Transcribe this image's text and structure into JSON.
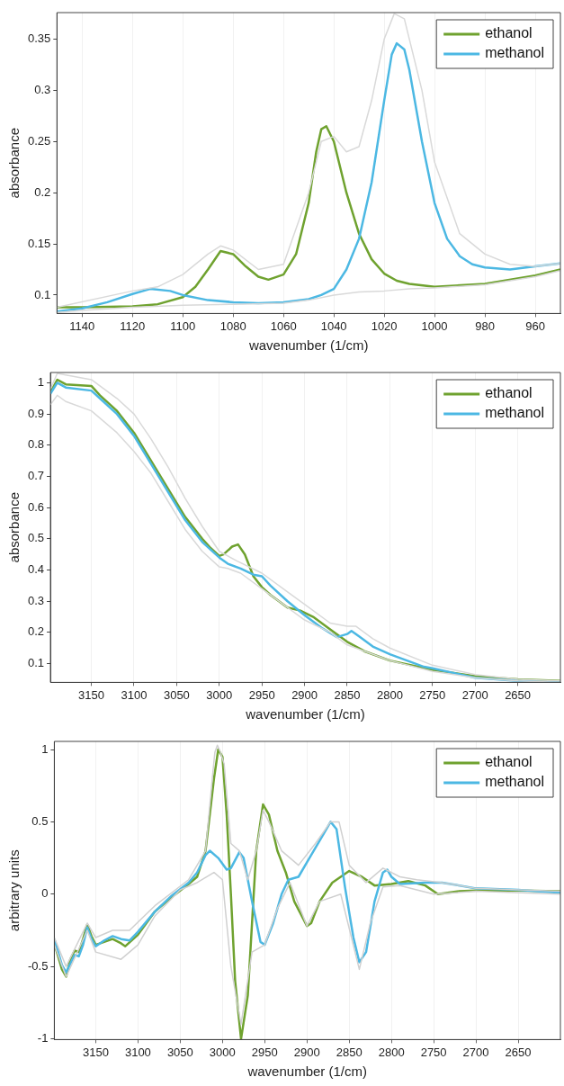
{
  "chart_data": [
    {
      "type": "line",
      "xlabel": "wavenumber (1/cm)",
      "ylabel": "absorbance",
      "xlim": [
        1150,
        950
      ],
      "ylim": [
        0.082,
        0.376
      ],
      "xticks": [
        1140,
        1120,
        1100,
        1080,
        1060,
        1040,
        1020,
        1000,
        980,
        960
      ],
      "yticks": [
        0.1,
        0.15,
        0.2,
        0.25,
        0.3,
        0.35
      ],
      "grid": "x",
      "legend": "top right",
      "series": [
        {
          "color": "#d9d9d9",
          "x": [
            1150,
            1120,
            1110,
            1100,
            1090,
            1085,
            1080,
            1070,
            1060,
            1050,
            1045,
            1040,
            1035,
            1030,
            1025,
            1020,
            1016,
            1012,
            1005,
            1000,
            990,
            980,
            970,
            960,
            950
          ],
          "values": [
            0.088,
            0.104,
            0.108,
            0.12,
            0.14,
            0.148,
            0.144,
            0.125,
            0.13,
            0.2,
            0.25,
            0.255,
            0.24,
            0.245,
            0.29,
            0.35,
            0.375,
            0.37,
            0.3,
            0.23,
            0.16,
            0.14,
            0.13,
            0.128,
            0.131
          ]
        },
        {
          "color": "#d9d9d9",
          "x": [
            1150,
            1140,
            1120,
            1100,
            1080,
            1060,
            1050,
            1040,
            1030,
            1020,
            1010,
            1000,
            980,
            960,
            950
          ],
          "values": [
            0.083,
            0.085,
            0.088,
            0.09,
            0.091,
            0.092,
            0.095,
            0.1,
            0.103,
            0.104,
            0.106,
            0.107,
            0.11,
            0.118,
            0.124
          ]
        },
        {
          "name": "ethanol",
          "color": "#6fa22f",
          "x": [
            1150,
            1140,
            1120,
            1110,
            1100,
            1095,
            1090,
            1085,
            1080,
            1075,
            1070,
            1066,
            1060,
            1055,
            1050,
            1047,
            1045,
            1043,
            1040,
            1035,
            1030,
            1025,
            1020,
            1015,
            1010,
            1000,
            980,
            960,
            950
          ],
          "values": [
            0.088,
            0.088,
            0.089,
            0.091,
            0.098,
            0.108,
            0.125,
            0.143,
            0.14,
            0.128,
            0.118,
            0.115,
            0.12,
            0.14,
            0.19,
            0.24,
            0.262,
            0.265,
            0.25,
            0.2,
            0.16,
            0.135,
            0.121,
            0.114,
            0.111,
            0.108,
            0.111,
            0.119,
            0.125
          ]
        },
        {
          "name": "methanol",
          "color": "#4cb8e3",
          "x": [
            1150,
            1140,
            1130,
            1120,
            1113,
            1105,
            1100,
            1090,
            1080,
            1070,
            1060,
            1050,
            1045,
            1040,
            1035,
            1030,
            1025,
            1020,
            1017,
            1015,
            1012,
            1010,
            1005,
            1000,
            995,
            990,
            985,
            980,
            970,
            960,
            950
          ],
          "values": [
            0.084,
            0.087,
            0.093,
            0.101,
            0.106,
            0.104,
            0.1,
            0.095,
            0.093,
            0.092,
            0.093,
            0.096,
            0.1,
            0.106,
            0.125,
            0.155,
            0.21,
            0.29,
            0.335,
            0.346,
            0.34,
            0.32,
            0.25,
            0.19,
            0.155,
            0.138,
            0.13,
            0.127,
            0.125,
            0.128,
            0.131
          ]
        }
      ]
    },
    {
      "type": "line",
      "xlabel": "wavenumber (1/cm)",
      "ylabel": "absorbance",
      "xlim": [
        3198,
        2600
      ],
      "ylim": [
        0.04,
        1.033
      ],
      "xticks": [
        3150,
        3100,
        3050,
        3000,
        2950,
        2900,
        2850,
        2800,
        2750,
        2700,
        2650
      ],
      "yticks": [
        0.1,
        0.2,
        0.3,
        0.4,
        0.5,
        0.6,
        0.7,
        0.8,
        0.9,
        1
      ],
      "grid": "x",
      "legend": "top right",
      "series": [
        {
          "color": "#d9d9d9",
          "x": [
            3198,
            3190,
            3170,
            3150,
            3120,
            3100,
            3080,
            3060,
            3040,
            3020,
            3000,
            2980,
            2950,
            2920,
            2900,
            2870,
            2850,
            2840,
            2820,
            2800,
            2750,
            2700,
            2650,
            2600
          ],
          "values": [
            0.98,
            1.03,
            1.02,
            1.01,
            0.95,
            0.9,
            0.82,
            0.73,
            0.63,
            0.54,
            0.46,
            0.43,
            0.39,
            0.33,
            0.29,
            0.23,
            0.22,
            0.22,
            0.18,
            0.15,
            0.095,
            0.065,
            0.05,
            0.045
          ]
        },
        {
          "color": "#d9d9d9",
          "x": [
            3198,
            3190,
            3180,
            3150,
            3120,
            3100,
            3080,
            3060,
            3040,
            3020,
            3000,
            2990,
            2975,
            2950,
            2920,
            2900,
            2870,
            2850,
            2800,
            2750,
            2700,
            2650,
            2600
          ],
          "values": [
            0.93,
            0.96,
            0.94,
            0.91,
            0.84,
            0.78,
            0.71,
            0.62,
            0.53,
            0.46,
            0.41,
            0.405,
            0.39,
            0.34,
            0.28,
            0.24,
            0.2,
            0.16,
            0.11,
            0.075,
            0.055,
            0.045,
            0.04
          ]
        },
        {
          "name": "ethanol",
          "color": "#6fa22f",
          "x": [
            3198,
            3190,
            3180,
            3150,
            3140,
            3120,
            3100,
            3080,
            3060,
            3040,
            3020,
            3010,
            3000,
            2995,
            2985,
            2978,
            2970,
            2960,
            2950,
            2940,
            2920,
            2905,
            2890,
            2870,
            2850,
            2830,
            2800,
            2750,
            2700,
            2650,
            2600
          ],
          "values": [
            0.97,
            1.01,
            0.995,
            0.99,
            0.96,
            0.91,
            0.84,
            0.75,
            0.66,
            0.57,
            0.5,
            0.47,
            0.445,
            0.45,
            0.475,
            0.482,
            0.45,
            0.38,
            0.345,
            0.32,
            0.28,
            0.27,
            0.25,
            0.21,
            0.17,
            0.14,
            0.11,
            0.08,
            0.06,
            0.05,
            0.045
          ]
        },
        {
          "name": "methanol",
          "color": "#4cb8e3",
          "x": [
            3198,
            3190,
            3180,
            3150,
            3140,
            3120,
            3100,
            3080,
            3060,
            3040,
            3020,
            3000,
            2990,
            2975,
            2960,
            2950,
            2940,
            2920,
            2900,
            2880,
            2862,
            2850,
            2845,
            2835,
            2820,
            2800,
            2760,
            2750,
            2700,
            2650,
            2600
          ],
          "values": [
            0.965,
            1.0,
            0.985,
            0.975,
            0.95,
            0.9,
            0.83,
            0.74,
            0.65,
            0.56,
            0.49,
            0.44,
            0.42,
            0.405,
            0.385,
            0.38,
            0.35,
            0.3,
            0.255,
            0.215,
            0.185,
            0.195,
            0.205,
            0.185,
            0.155,
            0.13,
            0.09,
            0.085,
            0.055,
            0.045,
            0.04
          ]
        }
      ]
    },
    {
      "type": "line",
      "xlabel": "wavenumber (1/cm)",
      "ylabel": "arbitrary units",
      "xlim": [
        3199,
        2600
      ],
      "ylim": [
        -1.005,
        1.056
      ],
      "xticks": [
        3150,
        3100,
        3050,
        3000,
        2950,
        2900,
        2850,
        2800,
        2750,
        2700,
        2650
      ],
      "yticks": [
        -1,
        -0.5,
        0,
        0.5,
        1
      ],
      "grid": "x",
      "legend": "top right",
      "series": [
        {
          "color": "#d0d0d0",
          "x": [
            3199,
            3185,
            3160,
            3150,
            3130,
            3110,
            3080,
            3040,
            3020,
            3012,
            3009,
            3006,
            3003,
            2998,
            2990,
            2980,
            2970,
            2960,
            2952,
            2945,
            2930,
            2910,
            2890,
            2872,
            2862,
            2850,
            2830,
            2810,
            2790,
            2770,
            2740,
            2700,
            2650,
            2600
          ],
          "values": [
            -0.3,
            -0.5,
            -0.2,
            -0.3,
            -0.25,
            -0.25,
            -0.08,
            0.1,
            0.3,
            0.8,
            0.98,
            1.03,
            0.99,
            0.9,
            0.35,
            0.3,
            0.1,
            0.3,
            0.58,
            0.5,
            0.3,
            0.2,
            0.35,
            0.5,
            0.5,
            0.2,
            0.08,
            0.18,
            0.12,
            0.1,
            0.08,
            0.04,
            0.03,
            0.02
          ]
        },
        {
          "color": "#d0d0d0",
          "x": [
            3199,
            3185,
            3160,
            3150,
            3120,
            3100,
            3080,
            3050,
            3030,
            3010,
            3000,
            2990,
            2978,
            2965,
            2950,
            2935,
            2920,
            2900,
            2885,
            2860,
            2838,
            2825,
            2810,
            2790,
            2750,
            2700,
            2600
          ],
          "values": [
            -0.35,
            -0.57,
            -0.25,
            -0.4,
            -0.45,
            -0.35,
            -0.15,
            0.03,
            0.08,
            0.15,
            0.1,
            -0.5,
            -0.9,
            -0.4,
            -0.35,
            -0.1,
            0.08,
            -0.22,
            -0.05,
            0.0,
            -0.52,
            -0.2,
            0.05,
            0.06,
            0.0,
            0.02,
            0.0
          ]
        },
        {
          "name": "ethanol",
          "color": "#6fa22f",
          "x": [
            3199,
            3190,
            3185,
            3180,
            3175,
            3170,
            3165,
            3160,
            3155,
            3150,
            3140,
            3130,
            3120,
            3115,
            3100,
            3080,
            3060,
            3040,
            3030,
            3020,
            3010,
            3005,
            3000,
            2995,
            2990,
            2985,
            2978,
            2970,
            2965,
            2960,
            2952,
            2945,
            2935,
            2925,
            2915,
            2900,
            2895,
            2885,
            2870,
            2850,
            2835,
            2820,
            2800,
            2780,
            2760,
            2745,
            2720,
            2700,
            2650,
            2600
          ],
          "values": [
            -0.34,
            -0.52,
            -0.57,
            -0.45,
            -0.39,
            -0.4,
            -0.31,
            -0.21,
            -0.29,
            -0.35,
            -0.33,
            -0.31,
            -0.34,
            -0.36,
            -0.28,
            -0.12,
            -0.02,
            0.07,
            0.12,
            0.3,
            0.8,
            1.0,
            0.95,
            0.55,
            0.0,
            -0.6,
            -1.0,
            -0.7,
            -0.2,
            0.3,
            0.62,
            0.55,
            0.3,
            0.15,
            -0.05,
            -0.22,
            -0.2,
            -0.05,
            0.08,
            0.16,
            0.12,
            0.06,
            0.07,
            0.09,
            0.06,
            0.0,
            0.02,
            0.025,
            0.025,
            0.02
          ]
        },
        {
          "name": "methanol",
          "color": "#4cb8e3",
          "x": [
            3199,
            3190,
            3185,
            3180,
            3175,
            3170,
            3165,
            3160,
            3155,
            3150,
            3140,
            3130,
            3120,
            3110,
            3100,
            3080,
            3060,
            3040,
            3030,
            3020,
            3015,
            3005,
            2995,
            2990,
            2980,
            2975,
            2965,
            2955,
            2950,
            2940,
            2930,
            2922,
            2910,
            2900,
            2880,
            2872,
            2865,
            2855,
            2845,
            2838,
            2830,
            2820,
            2810,
            2805,
            2800,
            2790,
            2760,
            2740,
            2700,
            2650,
            2600
          ],
          "values": [
            -0.31,
            -0.49,
            -0.54,
            -0.48,
            -0.42,
            -0.43,
            -0.35,
            -0.23,
            -0.31,
            -0.36,
            -0.32,
            -0.29,
            -0.31,
            -0.32,
            -0.26,
            -0.12,
            -0.01,
            0.08,
            0.15,
            0.27,
            0.3,
            0.25,
            0.17,
            0.18,
            0.29,
            0.25,
            -0.05,
            -0.33,
            -0.35,
            -0.2,
            0.0,
            0.1,
            0.12,
            0.22,
            0.42,
            0.5,
            0.45,
            0.05,
            -0.3,
            -0.47,
            -0.4,
            -0.05,
            0.15,
            0.17,
            0.12,
            0.07,
            0.08,
            0.08,
            0.04,
            0.03,
            0.01
          ]
        }
      ]
    }
  ]
}
